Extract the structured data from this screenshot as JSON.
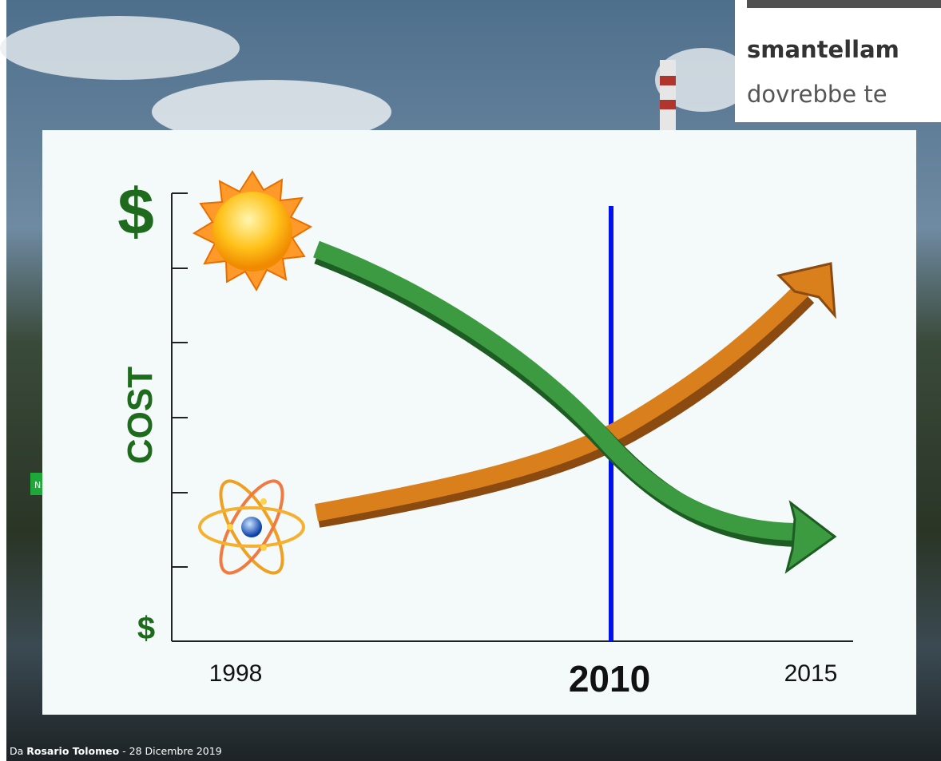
{
  "snippet": {
    "lines": [
      "smantellam",
      "dovrebbe te"
    ]
  },
  "badge": "N",
  "figure": {
    "y_top": "$",
    "y_label": "COST",
    "y_bottom": "$",
    "x_labels": [
      "1998",
      "2010",
      "2015"
    ]
  },
  "byline": {
    "prefix": "Da",
    "author": "Rosario Tolomeo",
    "separator": "-",
    "date": "28 Dicembre 2019"
  }
}
